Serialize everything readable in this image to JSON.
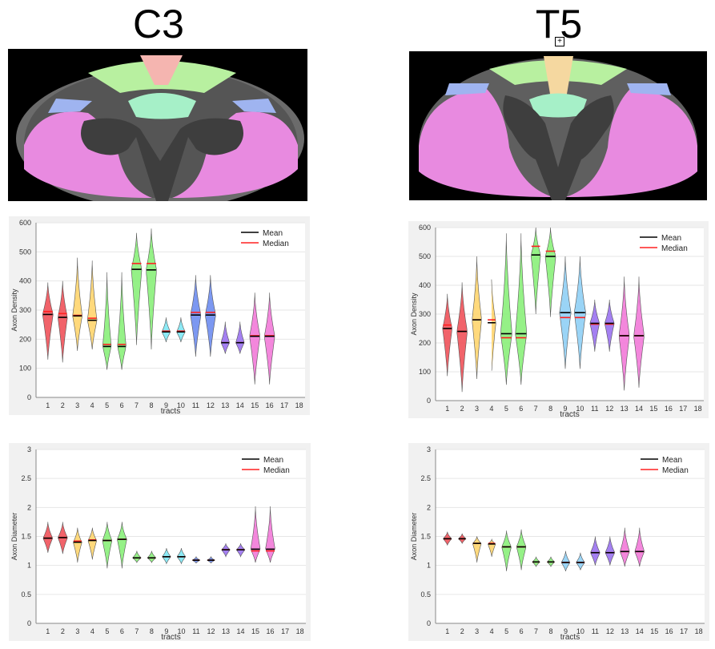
{
  "titles": {
    "left": "C3",
    "right": "T5"
  },
  "colors": {
    "red": "#f0525a",
    "orange": "#ffd56e",
    "green": "#8af07a",
    "cyan": "#7fe8f5",
    "blue": "#6e8df0",
    "violet": "#9a72f0",
    "pink": "#f27ad8",
    "lightblue": "#8fcff5",
    "mean_line": "#000000",
    "median_line": "#ff2020",
    "panel_bg": "#f1f1f1"
  },
  "chart_data": [
    {
      "type": "violin",
      "ylabel": "Axon Density",
      "xlabel": "tracts",
      "ylim": [
        0,
        600
      ],
      "yticks": [
        0,
        100,
        200,
        300,
        400,
        500,
        600
      ],
      "xticks": [
        1,
        2,
        3,
        4,
        5,
        6,
        7,
        8,
        9,
        10,
        11,
        12,
        13,
        14,
        15,
        16,
        17,
        18
      ],
      "legend": {
        "mean": "Mean",
        "median": "Median",
        "position": "top-right"
      },
      "violins": [
        {
          "tract": 1,
          "color": "red",
          "min": 130,
          "max": 395,
          "mean": 285,
          "median": 295,
          "width": 0.55
        },
        {
          "tract": 2,
          "color": "red",
          "min": 120,
          "max": 400,
          "mean": 275,
          "median": 288,
          "width": 0.5
        },
        {
          "tract": 3,
          "color": "orange",
          "min": 160,
          "max": 480,
          "mean": 280,
          "median": 282,
          "width": 0.5
        },
        {
          "tract": 4,
          "color": "orange",
          "min": 165,
          "max": 470,
          "mean": 265,
          "median": 272,
          "width": 0.5
        },
        {
          "tract": 5,
          "color": "green",
          "min": 95,
          "max": 430,
          "mean": 175,
          "median": 182,
          "width": 0.45
        },
        {
          "tract": 6,
          "color": "green",
          "min": 95,
          "max": 430,
          "mean": 175,
          "median": 182,
          "width": 0.45
        },
        {
          "tract": 7,
          "color": "green",
          "min": 180,
          "max": 565,
          "mean": 440,
          "median": 460,
          "width": 0.55
        },
        {
          "tract": 8,
          "color": "green",
          "min": 165,
          "max": 580,
          "mean": 438,
          "median": 460,
          "width": 0.55
        },
        {
          "tract": 9,
          "color": "cyan",
          "min": 190,
          "max": 275,
          "mean": 225,
          "median": 228,
          "width": 0.45
        },
        {
          "tract": 10,
          "color": "cyan",
          "min": 190,
          "max": 275,
          "mean": 225,
          "median": 228,
          "width": 0.45
        },
        {
          "tract": 11,
          "color": "blue",
          "min": 140,
          "max": 420,
          "mean": 283,
          "median": 292,
          "width": 0.55
        },
        {
          "tract": 12,
          "color": "blue",
          "min": 140,
          "max": 420,
          "mean": 283,
          "median": 292,
          "width": 0.55
        },
        {
          "tract": 13,
          "color": "violet",
          "min": 150,
          "max": 260,
          "mean": 188,
          "median": 188,
          "width": 0.45
        },
        {
          "tract": 14,
          "color": "violet",
          "min": 150,
          "max": 260,
          "mean": 188,
          "median": 188,
          "width": 0.45
        },
        {
          "tract": 15,
          "color": "pink",
          "min": 45,
          "max": 360,
          "mean": 210,
          "median": 212,
          "width": 0.55
        },
        {
          "tract": 16,
          "color": "pink",
          "min": 45,
          "max": 360,
          "mean": 210,
          "median": 212,
          "width": 0.55
        }
      ]
    },
    {
      "type": "violin",
      "ylabel": "Axon Density",
      "xlabel": "tracts",
      "ylim": [
        0,
        600
      ],
      "yticks": [
        0,
        100,
        200,
        300,
        400,
        500,
        600
      ],
      "xticks": [
        1,
        2,
        3,
        4,
        5,
        6,
        7,
        8,
        9,
        10,
        11,
        12,
        13,
        14,
        15,
        16,
        17,
        18
      ],
      "legend": {
        "mean": "Mean",
        "median": "Median",
        "position": "top-right"
      },
      "violins": [
        {
          "tract": 1,
          "color": "red",
          "min": 85,
          "max": 370,
          "mean": 250,
          "median": 262,
          "width": 0.5
        },
        {
          "tract": 2,
          "color": "red",
          "min": 30,
          "max": 410,
          "mean": 240,
          "median": 240,
          "width": 0.55
        },
        {
          "tract": 3,
          "color": "orange",
          "min": 75,
          "max": 500,
          "mean": 280,
          "median": 280,
          "width": 0.5
        },
        {
          "tract": 4,
          "color": "orange",
          "min": 90,
          "max": 420,
          "mean": 270,
          "median": 280,
          "width": 0.45
        },
        {
          "tract": 5,
          "color": "green",
          "min": 55,
          "max": 580,
          "mean": 232,
          "median": 218,
          "width": 0.6
        },
        {
          "tract": 6,
          "color": "green",
          "min": 55,
          "max": 580,
          "mean": 232,
          "median": 218,
          "width": 0.6
        },
        {
          "tract": 7,
          "color": "green",
          "min": 300,
          "max": 600,
          "mean": 505,
          "median": 535,
          "width": 0.5
        },
        {
          "tract": 8,
          "color": "green",
          "min": 290,
          "max": 600,
          "mean": 500,
          "median": 518,
          "width": 0.55
        },
        {
          "tract": 9,
          "color": "lightblue",
          "min": 110,
          "max": 500,
          "mean": 305,
          "median": 288,
          "width": 0.6
        },
        {
          "tract": 10,
          "color": "lightblue",
          "min": 110,
          "max": 500,
          "mean": 305,
          "median": 288,
          "width": 0.6
        },
        {
          "tract": 11,
          "color": "violet",
          "min": 170,
          "max": 350,
          "mean": 268,
          "median": 265,
          "width": 0.5
        },
        {
          "tract": 12,
          "color": "violet",
          "min": 170,
          "max": 350,
          "mean": 268,
          "median": 265,
          "width": 0.5
        },
        {
          "tract": 13,
          "color": "pink",
          "min": 35,
          "max": 430,
          "mean": 225,
          "median": 225,
          "width": 0.55
        },
        {
          "tract": 14,
          "color": "pink",
          "min": 45,
          "max": 430,
          "mean": 225,
          "median": 225,
          "width": 0.55
        }
      ]
    },
    {
      "type": "violin",
      "ylabel": "Axon Diameter",
      "xlabel": "tracts",
      "ylim": [
        0,
        3
      ],
      "yticks": [
        0,
        0.5,
        1,
        1.5,
        2,
        2.5,
        3
      ],
      "xticks": [
        1,
        2,
        3,
        4,
        5,
        6,
        7,
        8,
        9,
        10,
        11,
        12,
        13,
        14,
        15,
        16,
        17,
        18
      ],
      "legend": {
        "mean": "Mean",
        "median": "Median",
        "position": "top-right"
      },
      "violins": [
        {
          "tract": 1,
          "color": "red",
          "min": 1.22,
          "max": 1.75,
          "mean": 1.47,
          "median": 1.47,
          "width": 0.5
        },
        {
          "tract": 2,
          "color": "red",
          "min": 1.2,
          "max": 1.75,
          "mean": 1.48,
          "median": 1.48,
          "width": 0.5
        },
        {
          "tract": 3,
          "color": "orange",
          "min": 1.05,
          "max": 1.65,
          "mean": 1.4,
          "median": 1.42,
          "width": 0.45
        },
        {
          "tract": 4,
          "color": "orange",
          "min": 1.1,
          "max": 1.65,
          "mean": 1.43,
          "median": 1.44,
          "width": 0.45
        },
        {
          "tract": 5,
          "color": "green",
          "min": 0.95,
          "max": 1.75,
          "mean": 1.43,
          "median": 1.43,
          "width": 0.5
        },
        {
          "tract": 6,
          "color": "green",
          "min": 0.95,
          "max": 1.75,
          "mean": 1.45,
          "median": 1.45,
          "width": 0.5
        },
        {
          "tract": 7,
          "color": "green",
          "min": 1.05,
          "max": 1.25,
          "mean": 1.13,
          "median": 1.13,
          "width": 0.45
        },
        {
          "tract": 8,
          "color": "green",
          "min": 1.05,
          "max": 1.25,
          "mean": 1.13,
          "median": 1.13,
          "width": 0.45
        },
        {
          "tract": 9,
          "color": "cyan",
          "min": 1.03,
          "max": 1.3,
          "mean": 1.15,
          "median": 1.15,
          "width": 0.45
        },
        {
          "tract": 10,
          "color": "cyan",
          "min": 1.03,
          "max": 1.3,
          "mean": 1.15,
          "median": 1.15,
          "width": 0.45
        },
        {
          "tract": 11,
          "color": "blue",
          "min": 1.04,
          "max": 1.15,
          "mean": 1.09,
          "median": 1.09,
          "width": 0.4
        },
        {
          "tract": 12,
          "color": "blue",
          "min": 1.04,
          "max": 1.15,
          "mean": 1.09,
          "median": 1.09,
          "width": 0.4
        },
        {
          "tract": 13,
          "color": "violet",
          "min": 1.15,
          "max": 1.38,
          "mean": 1.27,
          "median": 1.27,
          "width": 0.45
        },
        {
          "tract": 14,
          "color": "violet",
          "min": 1.15,
          "max": 1.38,
          "mean": 1.27,
          "median": 1.27,
          "width": 0.45
        },
        {
          "tract": 15,
          "color": "pink",
          "min": 1.05,
          "max": 2.02,
          "mean": 1.28,
          "median": 1.25,
          "width": 0.5
        },
        {
          "tract": 16,
          "color": "pink",
          "min": 1.05,
          "max": 2.02,
          "mean": 1.28,
          "median": 1.25,
          "width": 0.5
        }
      ]
    },
    {
      "type": "violin",
      "ylabel": "Axon Diameter",
      "xlabel": "tracts",
      "ylim": [
        0,
        3
      ],
      "yticks": [
        0,
        0.5,
        1,
        1.5,
        2,
        2.5,
        3
      ],
      "xticks": [
        1,
        2,
        3,
        4,
        5,
        6,
        7,
        8,
        9,
        10,
        11,
        12,
        13,
        14,
        15,
        16,
        17,
        18
      ],
      "legend": {
        "mean": "Mean",
        "median": "Median",
        "position": "top-right"
      },
      "violins": [
        {
          "tract": 1,
          "color": "red",
          "min": 1.35,
          "max": 1.58,
          "mean": 1.46,
          "median": 1.46,
          "width": 0.45
        },
        {
          "tract": 2,
          "color": "red",
          "min": 1.38,
          "max": 1.55,
          "mean": 1.46,
          "median": 1.46,
          "width": 0.4
        },
        {
          "tract": 3,
          "color": "orange",
          "min": 1.05,
          "max": 1.5,
          "mean": 1.38,
          "median": 1.38,
          "width": 0.45
        },
        {
          "tract": 4,
          "color": "orange",
          "min": 1.15,
          "max": 1.45,
          "mean": 1.37,
          "median": 1.38,
          "width": 0.4
        },
        {
          "tract": 5,
          "color": "green",
          "min": 0.9,
          "max": 1.6,
          "mean": 1.32,
          "median": 1.32,
          "width": 0.5
        },
        {
          "tract": 6,
          "color": "green",
          "min": 0.92,
          "max": 1.62,
          "mean": 1.32,
          "median": 1.32,
          "width": 0.5
        },
        {
          "tract": 7,
          "color": "green",
          "min": 0.98,
          "max": 1.15,
          "mean": 1.06,
          "median": 1.06,
          "width": 0.4
        },
        {
          "tract": 8,
          "color": "green",
          "min": 0.98,
          "max": 1.15,
          "mean": 1.06,
          "median": 1.06,
          "width": 0.4
        },
        {
          "tract": 9,
          "color": "lightblue",
          "min": 0.9,
          "max": 1.25,
          "mean": 1.05,
          "median": 1.05,
          "width": 0.45
        },
        {
          "tract": 10,
          "color": "lightblue",
          "min": 0.92,
          "max": 1.22,
          "mean": 1.05,
          "median": 1.05,
          "width": 0.45
        },
        {
          "tract": 11,
          "color": "violet",
          "min": 1.0,
          "max": 1.5,
          "mean": 1.22,
          "median": 1.22,
          "width": 0.5
        },
        {
          "tract": 12,
          "color": "violet",
          "min": 1.0,
          "max": 1.5,
          "mean": 1.22,
          "median": 1.22,
          "width": 0.5
        },
        {
          "tract": 13,
          "color": "pink",
          "min": 0.98,
          "max": 1.65,
          "mean": 1.24,
          "median": 1.24,
          "width": 0.5
        },
        {
          "tract": 14,
          "color": "pink",
          "min": 0.98,
          "max": 1.65,
          "mean": 1.24,
          "median": 1.24,
          "width": 0.5
        }
      ]
    }
  ]
}
